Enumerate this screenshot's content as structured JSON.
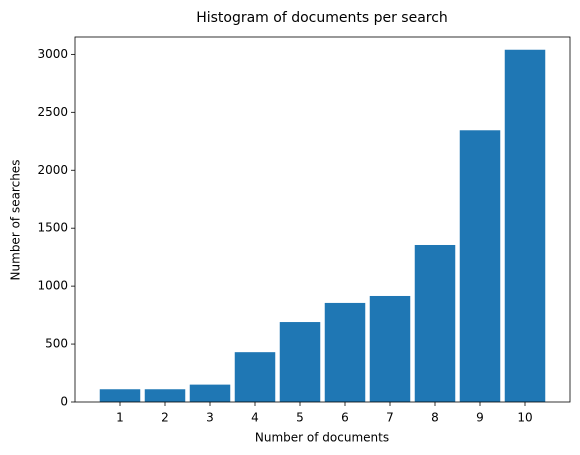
{
  "chart_data": {
    "type": "histogram",
    "title": "Histogram of documents per search",
    "x_label": "Number of documents",
    "y_label": "Number of searches",
    "bins": [
      0.5,
      1.5,
      2.5,
      3.5,
      4.5,
      5.5,
      6.5,
      7.5,
      8.5,
      9.5,
      10.5
    ],
    "values": [
      110,
      110,
      150,
      430,
      690,
      855,
      915,
      1355,
      2345,
      3040
    ],
    "color": "#1f77b4",
    "xlim": [
      0,
      11
    ],
    "xticks": [
      1,
      2,
      3,
      4,
      5,
      6,
      7,
      8,
      9,
      10
    ],
    "ylim": [
      0,
      3150
    ],
    "yticks": [
      0,
      500,
      1000,
      1500,
      2000,
      2500,
      3000
    ],
    "grid": false
  }
}
